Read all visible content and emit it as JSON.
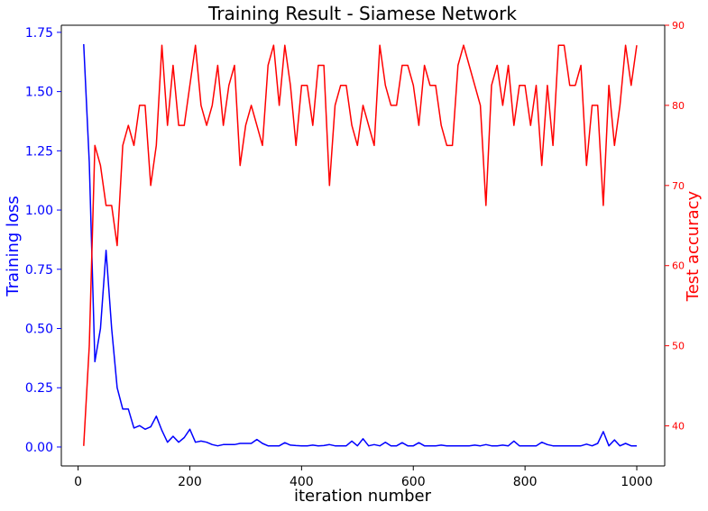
{
  "chart_data": {
    "type": "line",
    "title": "Training Result - Siamese Network",
    "xlabel": "iteration number",
    "ylabel_left": "Training loss",
    "ylabel_right": "Test accuracy",
    "xlim": [
      -30,
      1050
    ],
    "ylim_left": [
      -0.08,
      1.78
    ],
    "ylim_right": [
      35,
      90
    ],
    "xticks": [
      0,
      200,
      400,
      600,
      800,
      1000
    ],
    "yticks_left": [
      "0.00",
      "0.25",
      "0.50",
      "0.75",
      "1.00",
      "1.25",
      "1.50",
      "1.75"
    ],
    "yticks_right": [
      "40",
      "50",
      "60",
      "70",
      "80",
      "90"
    ],
    "colors": {
      "loss": "#0000ff",
      "accuracy": "#ff0000",
      "axes": "#000000"
    },
    "x": [
      10,
      20,
      30,
      40,
      50,
      60,
      70,
      80,
      90,
      100,
      110,
      120,
      130,
      140,
      150,
      160,
      170,
      180,
      190,
      200,
      210,
      220,
      230,
      240,
      250,
      260,
      270,
      280,
      290,
      300,
      310,
      320,
      330,
      340,
      350,
      360,
      370,
      380,
      390,
      400,
      410,
      420,
      430,
      440,
      450,
      460,
      470,
      480,
      490,
      500,
      510,
      520,
      530,
      540,
      550,
      560,
      570,
      580,
      590,
      600,
      610,
      620,
      630,
      640,
      650,
      660,
      670,
      680,
      690,
      700,
      710,
      720,
      730,
      740,
      750,
      760,
      770,
      780,
      790,
      800,
      810,
      820,
      830,
      840,
      850,
      860,
      870,
      880,
      890,
      900,
      910,
      920,
      930,
      940,
      950,
      960,
      970,
      980,
      990,
      1000
    ],
    "series": [
      {
        "axis": "left",
        "values": [
          1.7,
          1.2,
          0.36,
          0.5,
          0.83,
          0.5,
          0.25,
          0.16,
          0.16,
          0.08,
          0.09,
          0.075,
          0.085,
          0.13,
          0.07,
          0.02,
          0.045,
          0.02,
          0.04,
          0.075,
          0.02,
          0.025,
          0.02,
          0.01,
          0.005,
          0.01,
          0.01,
          0.01,
          0.015,
          0.015,
          0.015,
          0.032,
          0.015,
          0.005,
          0.005,
          0.005,
          0.018,
          0.008,
          0.006,
          0.005,
          0.005,
          0.008,
          0.005,
          0.006,
          0.01,
          0.005,
          0.005,
          0.005,
          0.025,
          0.005,
          0.035,
          0.005,
          0.01,
          0.005,
          0.02,
          0.005,
          0.005,
          0.018,
          0.005,
          0.005,
          0.018,
          0.005,
          0.005,
          0.005,
          0.008,
          0.005,
          0.005,
          0.005,
          0.005,
          0.005,
          0.008,
          0.005,
          0.01,
          0.005,
          0.005,
          0.008,
          0.005,
          0.025,
          0.005,
          0.005,
          0.005,
          0.005,
          0.02,
          0.01,
          0.005,
          0.005,
          0.005,
          0.005,
          0.005,
          0.005,
          0.012,
          0.005,
          0.015,
          0.065,
          0.005,
          0.03,
          0.005,
          0.015,
          0.005,
          0.005
        ]
      },
      {
        "axis": "right",
        "values": [
          37.5,
          50,
          75,
          72.5,
          67.5,
          67.5,
          62.5,
          75,
          77.5,
          75,
          80,
          80,
          70,
          75,
          87.5,
          77.5,
          85,
          77.5,
          77.5,
          82.5,
          87.5,
          80,
          77.5,
          80,
          85,
          77.5,
          82.5,
          85,
          72.5,
          77.5,
          80,
          77.5,
          75,
          85,
          87.5,
          80,
          87.5,
          82.5,
          75,
          82.5,
          82.5,
          77.5,
          85,
          85,
          70,
          80,
          82.5,
          82.5,
          77.5,
          75,
          80,
          77.5,
          75,
          87.5,
          82.5,
          80,
          80,
          85,
          85,
          82.5,
          77.5,
          85,
          82.5,
          82.5,
          77.5,
          75,
          75,
          85,
          87.5,
          85,
          82.5,
          80,
          67.5,
          82.5,
          85,
          80,
          85,
          77.5,
          82.5,
          82.5,
          77.5,
          82.5,
          72.5,
          82.5,
          75,
          87.5,
          87.5,
          82.5,
          82.5,
          85,
          72.5,
          80,
          80,
          67.5,
          82.5,
          75,
          80,
          87.5,
          82.5,
          87.5
        ]
      }
    ]
  }
}
